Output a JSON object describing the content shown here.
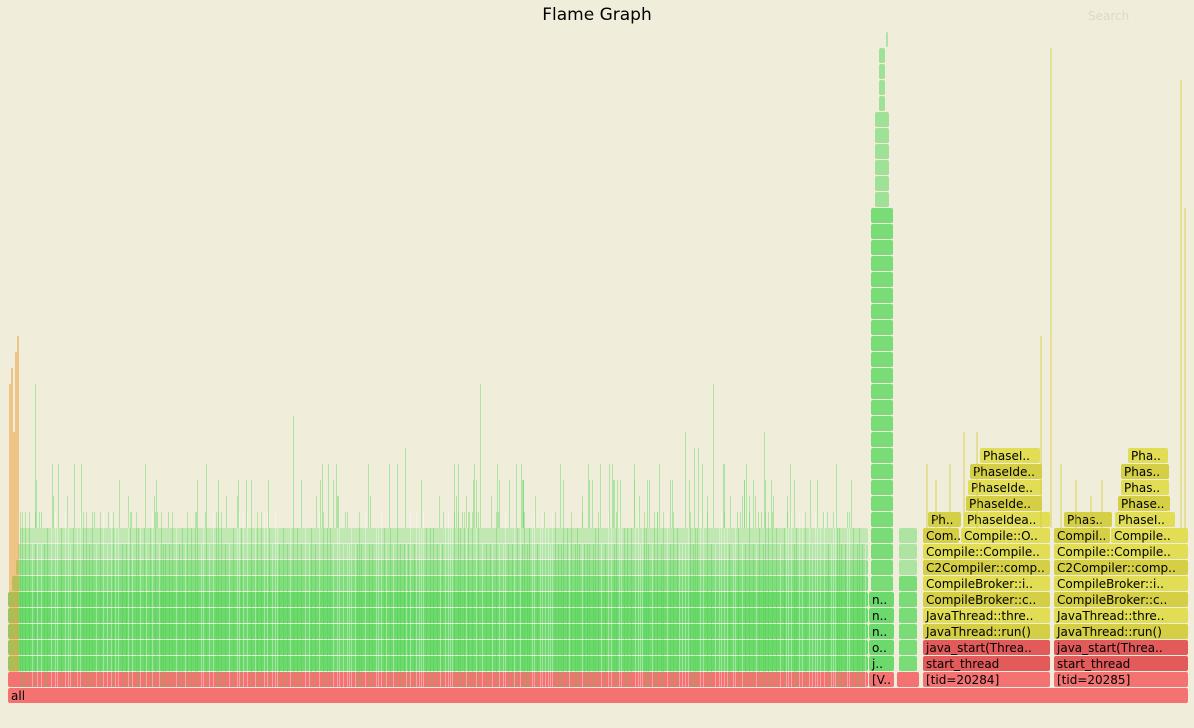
{
  "title": "Flame Graph",
  "search_label": "Search",
  "root_label": "all",
  "colors": {
    "green": "#6bd96b",
    "green_dark": "#4ccf4c",
    "red": "#f47272",
    "red_dark": "#e25a5a",
    "yellow": "#d4cf45",
    "yellow_light": "#e1dd55",
    "orange": "#f0a040",
    "background": "#f0eedb"
  },
  "left_stack_labels": [
    "[V..",
    "j..",
    "o..",
    "n..",
    "n..",
    "n.."
  ],
  "thread_a": {
    "tid": "[tid=20284]",
    "frames": [
      "start_thread",
      "java_start(Threa..",
      "JavaThread::run()",
      "JavaThread::thre..",
      "CompileBroker::c..",
      "CompileBroker::i..",
      "C2Compiler::comp..",
      "Compile::Compile.."
    ],
    "row_com": [
      "Com..",
      "Compile::O.."
    ],
    "row_ph": [
      "Ph..",
      "PhaseIdea.."
    ],
    "upper": [
      "PhaseIde..",
      "PhaseIde..",
      "PhaseIde..",
      "PhaseI.."
    ]
  },
  "thread_b": {
    "tid": "[tid=20285]",
    "frames": [
      "start_thread",
      "java_start(Threa..",
      "JavaThread::run()",
      "JavaThread::thre..",
      "CompileBroker::c..",
      "CompileBroker::i..",
      "C2Compiler::comp..",
      "Compile::Compile.."
    ],
    "row_com": [
      "Compil..",
      "Compile.."
    ],
    "row_ph": [
      "Phas..",
      "PhaseI.."
    ],
    "upper": [
      "Phase..",
      "Phas..",
      "Phas..",
      "Pha.."
    ]
  }
}
